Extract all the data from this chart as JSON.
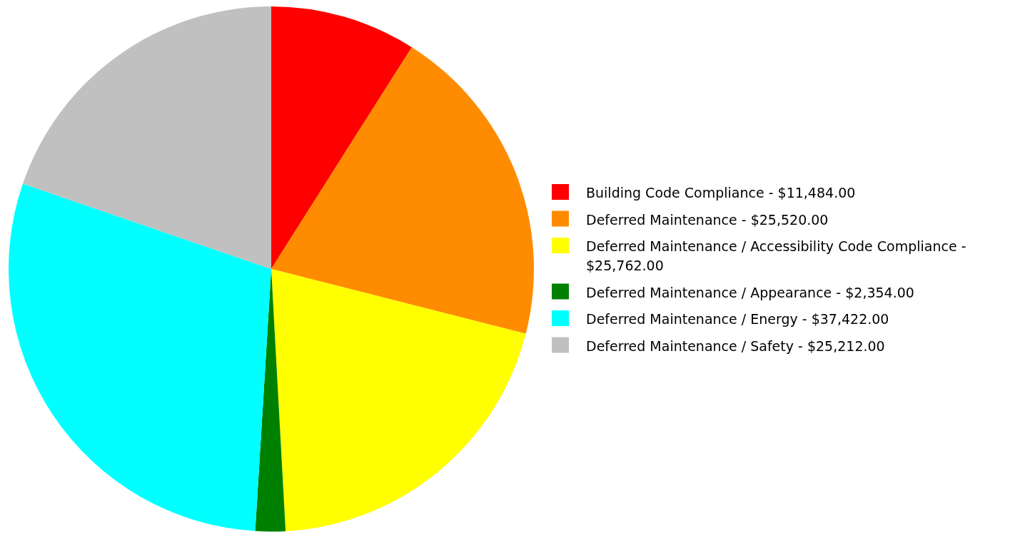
{
  "chart_data": {
    "type": "pie",
    "categories": [
      "Building Code Compliance - $11,484.00",
      "Deferred Maintenance - $25,520.00",
      "Deferred Maintenance / Accessibility Code Compliance - $25,762.00",
      "Deferred Maintenance / Appearance - $2,354.00",
      "Deferred Maintenance / Energy - $37,422.00",
      "Deferred Maintenance / Safety - $25,212.00"
    ],
    "values": [
      8.989,
      19.976,
      20.165,
      1.843,
      29.292,
      19.735
    ],
    "colors": [
      "#ff0000",
      "#ff8c00",
      "#ffff00",
      "#008000",
      "#00ffff",
      "#c0c0c0"
    ],
    "legend": "right"
  }
}
